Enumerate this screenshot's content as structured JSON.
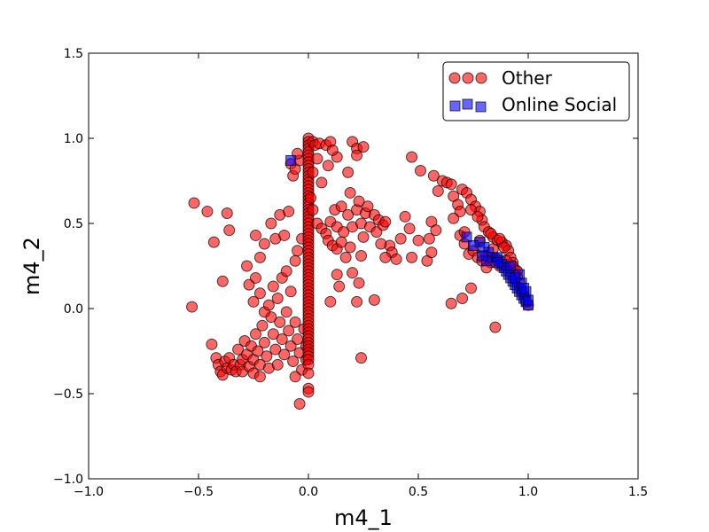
{
  "chart_data": {
    "type": "scatter",
    "title": "",
    "xlabel": "m4_1",
    "ylabel": "m4_2",
    "xlim": [
      -1.0,
      1.5
    ],
    "ylim": [
      -1.0,
      1.5
    ],
    "xticks": [
      "−1.0",
      "−0.5",
      "0.0",
      "0.5",
      "1.0",
      "1.5"
    ],
    "yticks": [
      "−1.0",
      "−0.5",
      "0.0",
      "0.5",
      "1.0",
      "1.5"
    ],
    "xtick_values": [
      -1.0,
      -0.5,
      0.0,
      0.5,
      1.0,
      1.5
    ],
    "ytick_values": [
      -1.0,
      -0.5,
      0.0,
      0.5,
      1.0,
      1.5
    ],
    "grid": false,
    "legend_position": "top-right",
    "series": [
      {
        "name": "Other",
        "marker": "circle",
        "color": "#ff0000",
        "points": [
          [
            -0.52,
            0.62
          ],
          [
            -0.46,
            0.57
          ],
          [
            -0.37,
            0.56
          ],
          [
            -0.43,
            0.39
          ],
          [
            -0.36,
            0.46
          ],
          [
            -0.39,
            0.16
          ],
          [
            -0.53,
            0.01
          ],
          [
            -0.44,
            -0.21
          ],
          [
            -0.42,
            -0.29
          ],
          [
            -0.41,
            -0.33
          ],
          [
            -0.4,
            -0.37
          ],
          [
            -0.39,
            -0.39
          ],
          [
            -0.38,
            -0.31
          ],
          [
            -0.37,
            -0.35
          ],
          [
            -0.36,
            -0.29
          ],
          [
            -0.35,
            -0.36
          ],
          [
            -0.34,
            -0.33
          ],
          [
            -0.33,
            -0.37
          ],
          [
            -0.32,
            -0.24
          ],
          [
            -0.31,
            -0.33
          ],
          [
            -0.3,
            -0.3
          ],
          [
            -0.3,
            -0.37
          ],
          [
            -0.29,
            -0.19
          ],
          [
            -0.28,
            -0.27
          ],
          [
            -0.27,
            -0.34
          ],
          [
            -0.26,
            -0.22
          ],
          [
            -0.25,
            -0.3
          ],
          [
            -0.25,
            -0.38
          ],
          [
            -0.24,
            -0.15
          ],
          [
            -0.23,
            -0.25
          ],
          [
            -0.22,
            -0.33
          ],
          [
            -0.22,
            -0.4
          ],
          [
            -0.21,
            -0.1
          ],
          [
            -0.2,
            -0.2
          ],
          [
            -0.19,
            -0.28
          ],
          [
            -0.18,
            -0.35
          ],
          [
            -0.17,
            -0.05
          ],
          [
            -0.16,
            -0.15
          ],
          [
            -0.15,
            -0.24
          ],
          [
            -0.14,
            -0.33
          ],
          [
            -0.13,
            -0.08
          ],
          [
            -0.12,
            -0.18
          ],
          [
            -0.11,
            -0.27
          ],
          [
            -0.1,
            -0.02
          ],
          [
            -0.09,
            -0.13
          ],
          [
            -0.08,
            -0.22
          ],
          [
            -0.07,
            -0.31
          ],
          [
            -0.06,
            -0.08
          ],
          [
            -0.05,
            -0.18
          ],
          [
            -0.04,
            -0.26
          ],
          [
            -0.03,
            -0.36
          ],
          [
            -0.02,
            -0.12
          ],
          [
            -0.01,
            -0.22
          ],
          [
            -0.01,
            -0.3
          ],
          [
            -0.06,
            -0.4
          ],
          [
            -0.04,
            -0.56
          ],
          [
            -0.27,
            0.14
          ],
          [
            -0.25,
            0.04
          ],
          [
            -0.22,
            0.09
          ],
          [
            -0.2,
            -0.02
          ],
          [
            -0.18,
            0.02
          ],
          [
            -0.16,
            0.13
          ],
          [
            -0.14,
            0.06
          ],
          [
            -0.12,
            0.18
          ],
          [
            -0.1,
            0.22
          ],
          [
            -0.08,
            0.1
          ],
          [
            -0.06,
            0.28
          ],
          [
            -0.28,
            0.25
          ],
          [
            -0.24,
            0.43
          ],
          [
            -0.2,
            0.38
          ],
          [
            -0.17,
            0.5
          ],
          [
            -0.15,
            0.41
          ],
          [
            -0.13,
            0.55
          ],
          [
            -0.11,
            0.43
          ],
          [
            -0.09,
            0.57
          ],
          [
            -0.05,
            0.34
          ],
          [
            -0.03,
            0.41
          ],
          [
            -0.24,
            0.18
          ],
          [
            -0.22,
            0.3
          ],
          [
            -0.08,
            0.85
          ],
          [
            -0.07,
            0.78
          ],
          [
            -0.06,
            0.82
          ],
          [
            -0.04,
            0.87
          ],
          [
            -0.05,
            0.91
          ],
          [
            0.0,
            1.0
          ],
          [
            0.0,
            0.98
          ],
          [
            0.0,
            0.96
          ],
          [
            0.0,
            0.94
          ],
          [
            0.0,
            0.92
          ],
          [
            0.0,
            0.9
          ],
          [
            0.0,
            0.88
          ],
          [
            0.0,
            0.86
          ],
          [
            0.0,
            0.84
          ],
          [
            0.0,
            0.82
          ],
          [
            0.0,
            0.8
          ],
          [
            0.0,
            0.78
          ],
          [
            0.0,
            0.76
          ],
          [
            0.0,
            0.74
          ],
          [
            0.0,
            0.72
          ],
          [
            0.0,
            0.7
          ],
          [
            0.0,
            0.68
          ],
          [
            0.0,
            0.66
          ],
          [
            0.0,
            0.64
          ],
          [
            0.0,
            0.62
          ],
          [
            0.0,
            0.6
          ],
          [
            0.0,
            0.58
          ],
          [
            0.0,
            0.56
          ],
          [
            0.0,
            0.54
          ],
          [
            0.0,
            0.52
          ],
          [
            0.0,
            0.5
          ],
          [
            0.0,
            0.48
          ],
          [
            0.0,
            0.46
          ],
          [
            0.0,
            0.44
          ],
          [
            0.0,
            0.42
          ],
          [
            0.0,
            0.4
          ],
          [
            0.0,
            0.38
          ],
          [
            0.0,
            0.36
          ],
          [
            0.0,
            0.34
          ],
          [
            0.0,
            0.32
          ],
          [
            0.0,
            0.3
          ],
          [
            0.0,
            0.28
          ],
          [
            0.0,
            0.26
          ],
          [
            0.0,
            0.24
          ],
          [
            0.0,
            0.22
          ],
          [
            0.0,
            0.2
          ],
          [
            0.0,
            0.18
          ],
          [
            0.0,
            0.16
          ],
          [
            0.0,
            0.14
          ],
          [
            0.0,
            0.12
          ],
          [
            0.0,
            0.1
          ],
          [
            0.0,
            0.08
          ],
          [
            0.0,
            0.06
          ],
          [
            0.0,
            0.04
          ],
          [
            0.0,
            0.02
          ],
          [
            0.0,
            0.0
          ],
          [
            0.0,
            -0.02
          ],
          [
            0.0,
            -0.04
          ],
          [
            0.0,
            -0.06
          ],
          [
            0.0,
            -0.08
          ],
          [
            0.0,
            -0.1
          ],
          [
            0.0,
            -0.12
          ],
          [
            0.0,
            -0.14
          ],
          [
            0.0,
            -0.16
          ],
          [
            0.0,
            -0.18
          ],
          [
            0.0,
            -0.2
          ],
          [
            0.0,
            -0.22
          ],
          [
            0.0,
            -0.24
          ],
          [
            0.0,
            -0.26
          ],
          [
            0.0,
            -0.28
          ],
          [
            0.0,
            -0.3
          ],
          [
            0.0,
            -0.33
          ],
          [
            0.0,
            -0.38
          ],
          [
            0.0,
            -0.47
          ],
          [
            0.0,
            -0.49
          ],
          [
            0.02,
            0.98
          ],
          [
            0.03,
            0.96
          ],
          [
            0.05,
            0.97
          ],
          [
            0.08,
            0.96
          ],
          [
            0.1,
            0.98
          ],
          [
            0.04,
            0.88
          ],
          [
            0.09,
            0.84
          ],
          [
            0.13,
            0.89
          ],
          [
            0.11,
            0.93
          ],
          [
            0.2,
            0.98
          ],
          [
            0.22,
            0.94
          ],
          [
            0.25,
            0.95
          ],
          [
            0.18,
            0.8
          ],
          [
            0.22,
            0.9
          ],
          [
            0.02,
            0.8
          ],
          [
            0.06,
            0.74
          ],
          [
            0.01,
            0.65
          ],
          [
            0.02,
            0.58
          ],
          [
            0.04,
            0.5
          ],
          [
            0.06,
            0.47
          ],
          [
            0.08,
            0.44
          ],
          [
            0.1,
            0.51
          ],
          [
            0.12,
            0.58
          ],
          [
            0.13,
            0.48
          ],
          [
            0.15,
            0.6
          ],
          [
            0.16,
            0.45
          ],
          [
            0.18,
            0.55
          ],
          [
            0.19,
            0.68
          ],
          [
            0.2,
            0.48
          ],
          [
            0.22,
            0.58
          ],
          [
            0.23,
            0.63
          ],
          [
            0.24,
            0.5
          ],
          [
            0.25,
            0.42
          ],
          [
            0.26,
            0.56
          ],
          [
            0.27,
            0.6
          ],
          [
            0.28,
            0.48
          ],
          [
            0.3,
            0.55
          ],
          [
            0.31,
            0.45
          ],
          [
            0.32,
            0.52
          ],
          [
            0.34,
            0.49
          ],
          [
            0.35,
            0.51
          ],
          [
            0.37,
            0.37
          ],
          [
            0.38,
            0.33
          ],
          [
            0.33,
            0.38
          ],
          [
            0.35,
            0.3
          ],
          [
            0.4,
            0.29
          ],
          [
            0.42,
            0.41
          ],
          [
            0.44,
            0.54
          ],
          [
            0.46,
            0.47
          ],
          [
            0.47,
            0.3
          ],
          [
            0.5,
            0.4
          ],
          [
            0.54,
            0.28
          ],
          [
            0.56,
            0.51
          ],
          [
            0.58,
            0.46
          ],
          [
            0.55,
            0.41
          ],
          [
            0.56,
            0.33
          ],
          [
            0.09,
            0.4
          ],
          [
            0.11,
            0.37
          ],
          [
            0.13,
            0.35
          ],
          [
            0.15,
            0.39
          ],
          [
            0.17,
            0.3
          ],
          [
            0.19,
            0.36
          ],
          [
            0.2,
            0.21
          ],
          [
            0.23,
            0.15
          ],
          [
            0.14,
            0.13
          ],
          [
            0.1,
            0.04
          ],
          [
            0.13,
            0.2
          ],
          [
            0.22,
            0.04
          ],
          [
            0.24,
            0.31
          ],
          [
            0.3,
            0.05
          ],
          [
            0.24,
            -0.29
          ],
          [
            0.47,
            0.89
          ],
          [
            0.51,
            0.81
          ],
          [
            0.57,
            0.78
          ],
          [
            0.59,
            0.69
          ],
          [
            0.61,
            0.75
          ],
          [
            0.63,
            0.74
          ],
          [
            0.65,
            0.73
          ],
          [
            0.66,
            0.66
          ],
          [
            0.68,
            0.61
          ],
          [
            0.69,
            0.57
          ],
          [
            0.7,
            0.7
          ],
          [
            0.72,
            0.68
          ],
          [
            0.74,
            0.64
          ],
          [
            0.76,
            0.6
          ],
          [
            0.78,
            0.57
          ],
          [
            0.79,
            0.52
          ],
          [
            0.8,
            0.48
          ],
          [
            0.82,
            0.45
          ],
          [
            0.84,
            0.42
          ],
          [
            0.86,
            0.4
          ],
          [
            0.88,
            0.39
          ],
          [
            0.9,
            0.37
          ],
          [
            0.91,
            0.34
          ],
          [
            0.92,
            0.3
          ],
          [
            0.93,
            0.27
          ],
          [
            0.94,
            0.23
          ],
          [
            0.95,
            0.19
          ],
          [
            0.96,
            0.15
          ],
          [
            0.97,
            0.11
          ],
          [
            0.98,
            0.08
          ],
          [
            0.99,
            0.04
          ],
          [
            1.0,
            0.02
          ],
          [
            0.74,
            0.58
          ],
          [
            0.77,
            0.54
          ],
          [
            0.83,
            0.44
          ],
          [
            0.87,
            0.41
          ],
          [
            0.89,
            0.36
          ],
          [
            0.9,
            0.28
          ],
          [
            0.93,
            0.25
          ],
          [
            0.95,
            0.22
          ],
          [
            0.66,
            0.53
          ],
          [
            0.69,
            0.43
          ],
          [
            0.71,
            0.38
          ],
          [
            0.73,
            0.32
          ],
          [
            0.75,
            0.34
          ],
          [
            0.77,
            0.3
          ],
          [
            0.79,
            0.28
          ],
          [
            0.81,
            0.31
          ],
          [
            0.83,
            0.27
          ],
          [
            0.86,
            0.29
          ],
          [
            0.87,
            0.25
          ],
          [
            0.65,
            0.03
          ],
          [
            0.7,
            0.06
          ],
          [
            0.74,
            0.12
          ],
          [
            0.85,
            -0.11
          ],
          [
            0.81,
            0.24
          ],
          [
            0.84,
            0.35
          ],
          [
            0.78,
            0.4
          ],
          [
            0.71,
            0.45
          ]
        ]
      },
      {
        "name": "Online Social",
        "marker": "square",
        "color": "#0000ff",
        "points": [
          [
            -0.08,
            0.87
          ],
          [
            0.72,
            0.42
          ],
          [
            0.78,
            0.39
          ],
          [
            0.8,
            0.36
          ],
          [
            0.82,
            0.33
          ],
          [
            0.84,
            0.3
          ],
          [
            0.86,
            0.3
          ],
          [
            0.87,
            0.28
          ],
          [
            0.88,
            0.26
          ],
          [
            0.89,
            0.24
          ],
          [
            0.9,
            0.22
          ],
          [
            0.91,
            0.2
          ],
          [
            0.92,
            0.18
          ],
          [
            0.93,
            0.16
          ],
          [
            0.94,
            0.14
          ],
          [
            0.95,
            0.12
          ],
          [
            0.96,
            0.1
          ],
          [
            0.97,
            0.08
          ],
          [
            0.98,
            0.06
          ],
          [
            0.99,
            0.04
          ],
          [
            1.0,
            0.02
          ],
          [
            0.81,
            0.28
          ],
          [
            0.92,
            0.25
          ],
          [
            0.96,
            0.2
          ],
          [
            0.97,
            0.15
          ],
          [
            0.99,
            0.1
          ],
          [
            0.98,
            0.12
          ],
          [
            1.0,
            0.05
          ],
          [
            0.94,
            0.18
          ],
          [
            0.75,
            0.37
          ],
          [
            0.79,
            0.31
          ],
          [
            0.86,
            0.27
          ]
        ]
      }
    ]
  }
}
